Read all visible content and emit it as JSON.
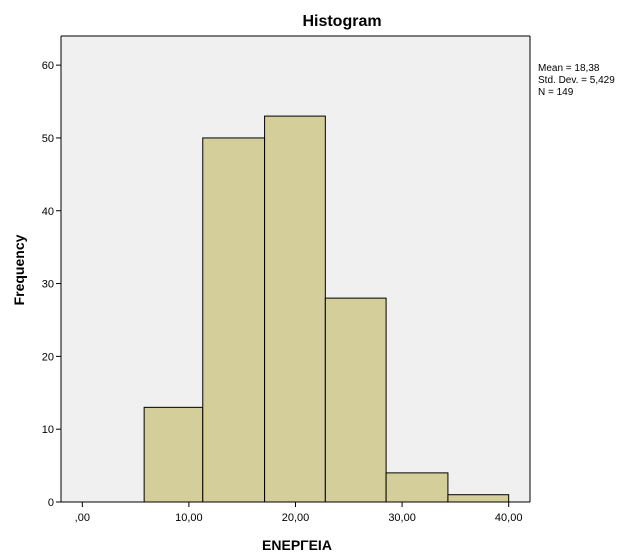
{
  "chart_data": {
    "type": "bar",
    "title": "Histogram",
    "xlabel": "ΕΝΕΡΓΕΙΑ",
    "ylabel": "Frequency",
    "bins": [
      {
        "start": 5.8,
        "end": 11.3,
        "count": 13
      },
      {
        "start": 11.3,
        "end": 17.1,
        "count": 50
      },
      {
        "start": 17.1,
        "end": 22.8,
        "count": 53
      },
      {
        "start": 22.8,
        "end": 28.5,
        "count": 28
      },
      {
        "start": 28.5,
        "end": 34.3,
        "count": 4
      },
      {
        "start": 34.3,
        "end": 40.0,
        "count": 1
      }
    ],
    "xlim": [
      -2.0,
      42.0
    ],
    "ylim": [
      0,
      64
    ],
    "x_ticks": [
      {
        "value": 0,
        "label": ",00"
      },
      {
        "value": 10,
        "label": "10,00"
      },
      {
        "value": 20,
        "label": "20,00"
      },
      {
        "value": 30,
        "label": "30,00"
      },
      {
        "value": 40,
        "label": "40,00"
      }
    ],
    "y_ticks": [
      {
        "value": 0,
        "label": "0"
      },
      {
        "value": 10,
        "label": "10"
      },
      {
        "value": 20,
        "label": "20"
      },
      {
        "value": 30,
        "label": "30"
      },
      {
        "value": 40,
        "label": "40"
      },
      {
        "value": 50,
        "label": "50"
      },
      {
        "value": 60,
        "label": "60"
      }
    ],
    "stats": [
      "Mean = 18,38",
      "Std. Dev. = 5,429",
      "N = 149"
    ],
    "grid": false,
    "colors": {
      "bar_fill": "#d3ce9a",
      "bar_stroke": "#000000",
      "plot_background": "#f0f0f0",
      "axis": "#000000"
    }
  }
}
